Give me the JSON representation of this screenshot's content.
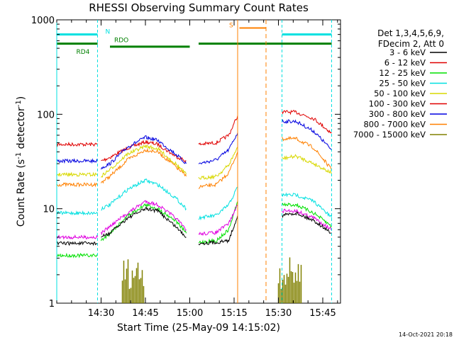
{
  "chart_data": {
    "type": "line",
    "title": "RHESSI Observing Summary Count Rates",
    "xlabel": "Start Time (25-May-09 14:15:02)",
    "ylabel_main": "Count Rate (s",
    "ylabel_sup1": "-1",
    "ylabel_mid": " detector",
    "ylabel_sup2": "-1",
    "ylabel_end": ")",
    "y_scale": "log",
    "ylim": [
      1,
      1000
    ],
    "xlim_minutes": [
      14.25,
      15.85
    ],
    "x_ticks": [
      {
        "t": 14.5,
        "label": "14:30"
      },
      {
        "t": 14.75,
        "label": "14:45"
      },
      {
        "t": 15.0,
        "label": "15:00"
      },
      {
        "t": 15.25,
        "label": "15:15"
      },
      {
        "t": 15.5,
        "label": "15:30"
      },
      {
        "t": 15.75,
        "label": "15:45"
      }
    ],
    "y_ticks": [
      {
        "v": 1,
        "label": "1"
      },
      {
        "v": 10,
        "label": "10"
      },
      {
        "v": 100,
        "label": "100"
      },
      {
        "v": 1000,
        "label": "1000"
      }
    ],
    "legend_header": [
      "Det 1,3,4,5,6,9,",
      "FDecim 2, Att 0"
    ],
    "legend_position": "right",
    "timestamp": "14-Oct-2021 20:18",
    "series": [
      {
        "name": "3 - 6 keV",
        "color": "#000000"
      },
      {
        "name": "6 - 12 keV",
        "color": "#e00000"
      },
      {
        "name": "12 - 25 keV",
        "color": "#00e000"
      },
      {
        "name": "25 - 50 keV",
        "color": "#00e0e0"
      },
      {
        "name": "50 - 100 keV",
        "color": "#d8d800"
      },
      {
        "name": "100 - 300 keV",
        "color": "#e00000"
      },
      {
        "name": "300 - 800 keV",
        "color": "#0000e0"
      },
      {
        "name": "800 - 7000 keV",
        "color": "#ff8000"
      },
      {
        "name": "7000 - 15000 keV",
        "color": "#808000"
      }
    ],
    "curves": [
      {
        "color": "#e00000",
        "segments": [
          [
            [
              14.25,
              48
            ],
            [
              14.48,
              48
            ]
          ],
          [
            [
              14.5,
              32
            ],
            [
              14.55,
              35
            ],
            [
              14.65,
              44
            ],
            [
              14.75,
              51
            ],
            [
              14.82,
              48
            ],
            [
              14.92,
              36
            ],
            [
              14.98,
              32
            ]
          ],
          [
            [
              15.05,
              48
            ],
            [
              15.15,
              50
            ],
            [
              15.22,
              60
            ],
            [
              15.27,
              97
            ]
          ],
          [
            [
              15.52,
              106
            ],
            [
              15.6,
              105
            ],
            [
              15.7,
              90
            ],
            [
              15.8,
              63
            ]
          ]
        ]
      },
      {
        "color": "#0000e0",
        "segments": [
          [
            [
              14.25,
              32
            ],
            [
              14.48,
              32
            ]
          ],
          [
            [
              14.5,
              27
            ],
            [
              14.55,
              30
            ],
            [
              14.65,
              45
            ],
            [
              14.75,
              57
            ],
            [
              14.82,
              53
            ],
            [
              14.92,
              38
            ],
            [
              14.98,
              30
            ]
          ],
          [
            [
              15.05,
              30
            ],
            [
              15.15,
              33
            ],
            [
              15.22,
              42
            ],
            [
              15.27,
              64
            ]
          ],
          [
            [
              15.52,
              84
            ],
            [
              15.6,
              84
            ],
            [
              15.7,
              66
            ],
            [
              15.8,
              42
            ]
          ]
        ]
      },
      {
        "color": "#ff8000",
        "segments": [
          [
            [
              14.25,
              18
            ],
            [
              14.48,
              18
            ]
          ],
          [
            [
              14.5,
              19
            ],
            [
              14.55,
              22
            ],
            [
              14.65,
              33
            ],
            [
              14.75,
              42
            ],
            [
              14.82,
              40
            ],
            [
              14.92,
              28
            ],
            [
              14.98,
              22
            ]
          ],
          [
            [
              15.05,
              17
            ],
            [
              15.15,
              18
            ],
            [
              15.22,
              24
            ],
            [
              15.27,
              40
            ]
          ],
          [
            [
              15.52,
              55
            ],
            [
              15.6,
              55
            ],
            [
              15.7,
              44
            ],
            [
              15.8,
              26
            ]
          ]
        ]
      },
      {
        "color": "#d8d800",
        "segments": [
          [
            [
              14.25,
              23
            ],
            [
              14.48,
              23
            ]
          ],
          [
            [
              14.5,
              22
            ],
            [
              14.55,
              26
            ],
            [
              14.65,
              38
            ],
            [
              14.75,
              46
            ],
            [
              14.82,
              43
            ],
            [
              14.92,
              30
            ],
            [
              14.98,
              23
            ]
          ],
          [
            [
              15.05,
              21
            ],
            [
              15.15,
              22
            ],
            [
              15.22,
              29
            ],
            [
              15.27,
              45
            ]
          ],
          [
            [
              15.52,
              34
            ],
            [
              15.6,
              36
            ],
            [
              15.7,
              30
            ],
            [
              15.8,
              24
            ]
          ]
        ]
      },
      {
        "color": "#00e0e0",
        "segments": [
          [
            [
              14.25,
              9
            ],
            [
              14.48,
              9
            ]
          ],
          [
            [
              14.5,
              10
            ],
            [
              14.55,
              11
            ],
            [
              14.65,
              16
            ],
            [
              14.75,
              20
            ],
            [
              14.82,
              18
            ],
            [
              14.92,
              13
            ],
            [
              14.98,
              10
            ]
          ],
          [
            [
              15.05,
              8
            ],
            [
              15.15,
              8.5
            ],
            [
              15.22,
              11
            ],
            [
              15.27,
              17
            ]
          ],
          [
            [
              15.52,
              14
            ],
            [
              15.6,
              14
            ],
            [
              15.7,
              12
            ],
            [
              15.8,
              8
            ]
          ]
        ]
      },
      {
        "color": "#00e000",
        "segments": [
          [
            [
              14.25,
              3.2
            ],
            [
              14.48,
              3.2
            ]
          ],
          [
            [
              14.5,
              4.6
            ],
            [
              14.55,
              5.5
            ],
            [
              14.65,
              8.5
            ],
            [
              14.75,
              11
            ],
            [
              14.82,
              10
            ],
            [
              14.92,
              7.5
            ],
            [
              14.98,
              5.5
            ]
          ],
          [
            [
              15.05,
              4.4
            ],
            [
              15.15,
              4.6
            ],
            [
              15.22,
              6
            ],
            [
              15.27,
              12
            ]
          ],
          [
            [
              15.52,
              11
            ],
            [
              15.6,
              11
            ],
            [
              15.7,
              9
            ],
            [
              15.8,
              6.5
            ]
          ]
        ]
      },
      {
        "color": "#e000e0",
        "segments": [
          [
            [
              14.25,
              5
            ],
            [
              14.48,
              5
            ]
          ],
          [
            [
              14.5,
              5.5
            ],
            [
              14.55,
              6.5
            ],
            [
              14.65,
              9
            ],
            [
              14.75,
              12
            ],
            [
              14.82,
              11
            ],
            [
              14.92,
              8
            ],
            [
              14.98,
              6
            ]
          ],
          [
            [
              15.05,
              5.4
            ],
            [
              15.15,
              5.6
            ],
            [
              15.22,
              7
            ],
            [
              15.27,
              11
            ]
          ],
          [
            [
              15.52,
              9.5
            ],
            [
              15.6,
              9.5
            ],
            [
              15.7,
              8
            ],
            [
              15.8,
              6
            ]
          ]
        ]
      },
      {
        "color": "#000000",
        "segments": [
          [
            [
              14.25,
              4.3
            ],
            [
              14.48,
              4.3
            ]
          ],
          [
            [
              14.5,
              5
            ],
            [
              14.55,
              5.5
            ],
            [
              14.65,
              8
            ],
            [
              14.75,
              10
            ],
            [
              14.82,
              9.5
            ],
            [
              14.92,
              6.5
            ],
            [
              14.98,
              5
            ]
          ],
          [
            [
              15.05,
              4.3
            ],
            [
              15.15,
              4.4
            ],
            [
              15.22,
              4.6
            ],
            [
              15.27,
              8.5
            ]
          ],
          [
            [
              15.52,
              8.5
            ],
            [
              15.6,
              9
            ],
            [
              15.7,
              7.5
            ],
            [
              15.8,
              5.5
            ]
          ]
        ]
      }
    ],
    "bursts_7000_15000": [
      {
        "t0": 14.62,
        "t1": 14.74
      },
      {
        "t0": 15.5,
        "t1": 15.63
      }
    ],
    "annotations": {
      "N": {
        "label": "N",
        "t": 14.5,
        "level": 700
      },
      "RDO": {
        "label": "RDO",
        "t": 14.55,
        "level": 560
      },
      "RD4": {
        "label": "RD4",
        "t": 14.48,
        "level": 520
      },
      "S": {
        "label": "S",
        "t": 15.27,
        "level": 820
      }
    },
    "cyan_bars": [
      [
        14.25,
        14.48
      ],
      [
        15.52,
        15.8
      ]
    ],
    "green_bars": [
      [
        14.25,
        14.48
      ],
      [
        15.05,
        15.8
      ]
    ],
    "green_bar_low": [
      14.55,
      15.0
    ],
    "orange_bar": [
      15.28,
      15.43
    ],
    "cyan_vlines": [
      14.25,
      14.48,
      15.52,
      15.8
    ],
    "orange_vlines_solid": [
      15.27
    ],
    "orange_vlines_dashed": [
      15.43
    ]
  }
}
